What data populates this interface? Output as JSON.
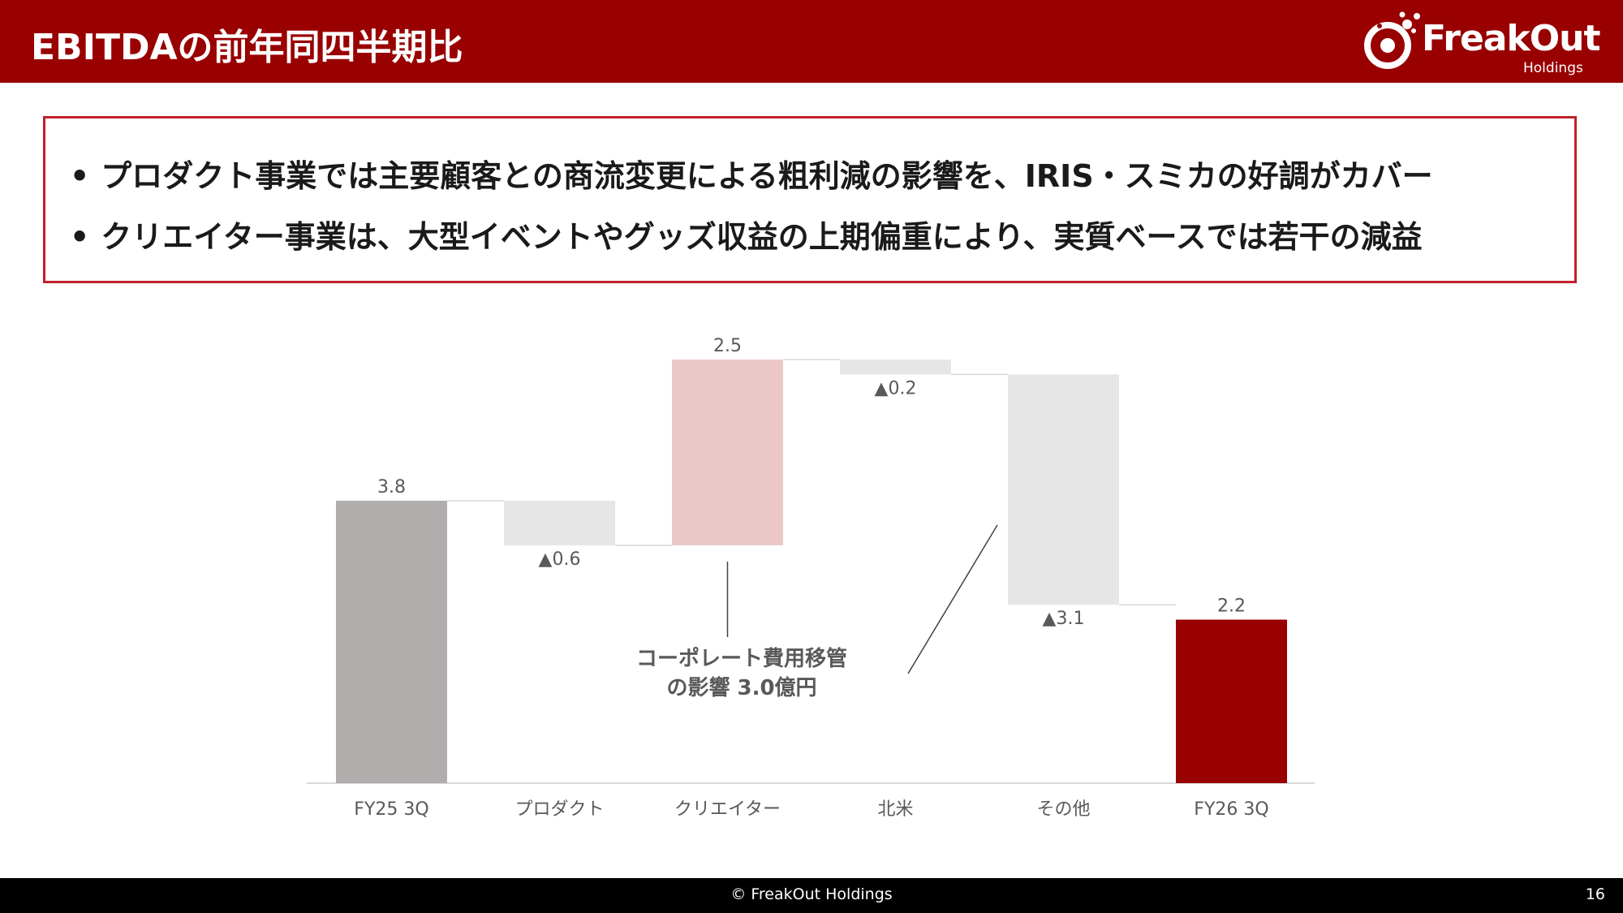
{
  "header": {
    "title": "EBITDAの前年同四半期比",
    "logo_text": "FreakOut",
    "logo_sub": "Holdings"
  },
  "summary": {
    "bullets": [
      "プロダクト事業では主要顧客との商流変更による粗利減の影響を、IRIS・スミカの好調がカバー",
      "クリエイター事業は、大型イベントやグッズ収益の上期偏重により、実質ベースでは若干の減益"
    ],
    "bullet_symbol": "•"
  },
  "chart_data": {
    "type": "bar",
    "subtype": "waterfall",
    "categories": [
      "FY25 3Q",
      "プロダクト",
      "クリエイター",
      "北米",
      "その他",
      "FY26 3Q"
    ],
    "values": [
      3.8,
      -0.6,
      2.5,
      -0.2,
      -3.1,
      2.2
    ],
    "kinds": [
      "total",
      "delta",
      "delta",
      "delta",
      "delta",
      "total"
    ],
    "data_labels": [
      "3.8",
      "▲0.6",
      "2.5",
      "▲0.2",
      "▲3.1",
      "2.2"
    ],
    "colors": [
      "#b0adac",
      "#e6e6e6",
      "#ebc9cb",
      "#e6e6e6",
      "#e6e6e6",
      "#990000"
    ],
    "ylim": [
      0,
      6.3
    ],
    "annotation": {
      "lines": [
        "コーポレート費用移管",
        "の影響 3.0億円"
      ]
    }
  },
  "footer": {
    "copyright": "© FreakOut Holdings",
    "page_number": "16"
  },
  "colors": {
    "brand": "#990000",
    "box_border": "#c0202a",
    "label_text": "#595959"
  }
}
